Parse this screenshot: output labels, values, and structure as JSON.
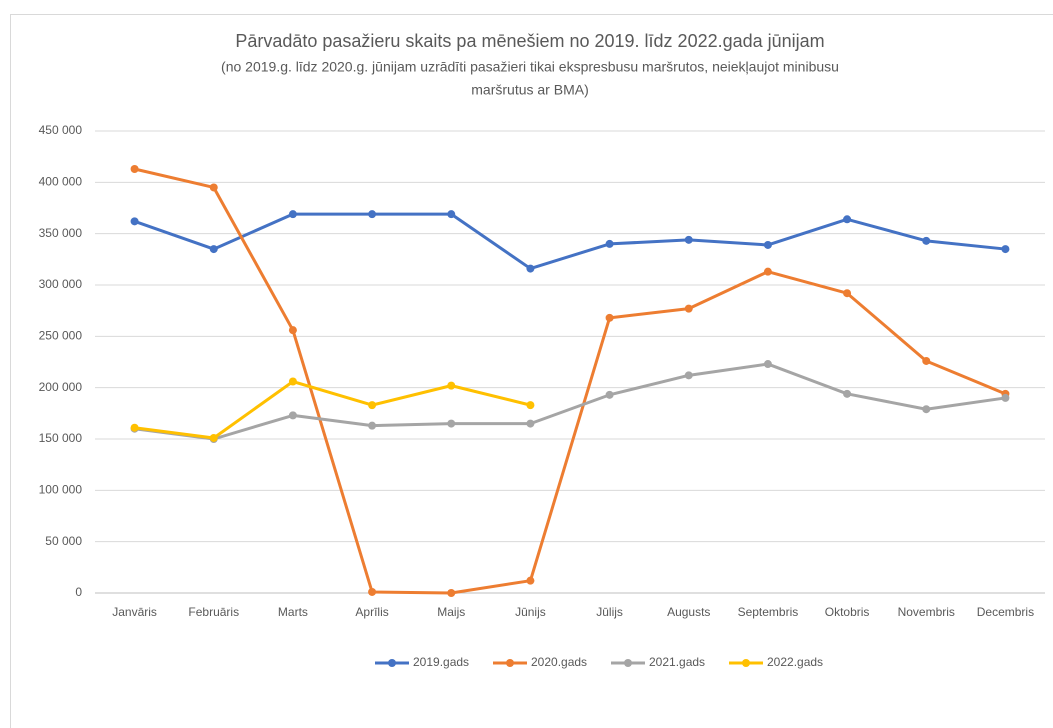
{
  "chart_data": {
    "type": "line",
    "title": "Pārvadāto pasažieru skaits pa mēnešiem no 2019. līdz 2022.gada jūnijam",
    "subtitle": [
      "(no 2019.g. līdz 2020.g. jūnijam uzrādīti pasažieri tikai ekspresbusu maršrutos, neiekļaujot minibusu",
      "maršrutus ar BMA)"
    ],
    "categories": [
      "Janvāris",
      "Februāris",
      "Marts",
      "Aprīlis",
      "Maijs",
      "Jūnijs",
      "Jūlijs",
      "Augusts",
      "Septembris",
      "Oktobris",
      "Novembris",
      "Decembris"
    ],
    "series": [
      {
        "name": "2019.gads",
        "color": "#4472c4",
        "values": [
          362000,
          335000,
          369000,
          369000,
          369000,
          316000,
          340000,
          344000,
          339000,
          364000,
          343000,
          335000
        ]
      },
      {
        "name": "2020.gads",
        "color": "#ed7d31",
        "values": [
          413000,
          395000,
          256000,
          1000,
          0,
          12000,
          268000,
          277000,
          313000,
          292000,
          226000,
          194000
        ]
      },
      {
        "name": "2021.gads",
        "color": "#a5a5a5",
        "values": [
          160000,
          150000,
          173000,
          163000,
          165000,
          165000,
          193000,
          212000,
          223000,
          194000,
          179000,
          190000
        ]
      },
      {
        "name": "2022.gads",
        "color": "#ffc000",
        "values": [
          161000,
          151000,
          206000,
          183000,
          202000,
          183000,
          null,
          null,
          null,
          null,
          null,
          null
        ]
      }
    ],
    "ylim": [
      0,
      450000
    ],
    "yticks": [
      0,
      {
        "value": 50000,
        "label": "50 000"
      },
      {
        "value": 100000,
        "label": "100 000"
      },
      {
        "value": 150000,
        "label": "150 000"
      },
      {
        "value": 200000,
        "label": "200 000"
      },
      {
        "value": 250000,
        "label": "250 000"
      },
      {
        "value": 300000,
        "label": "300 000"
      },
      {
        "value": 350000,
        "label": "350 000"
      },
      {
        "value": 400000,
        "label": "400 000"
      },
      {
        "value": 450000,
        "label": "450 000"
      }
    ],
    "grid": true,
    "legend": "bottom"
  }
}
